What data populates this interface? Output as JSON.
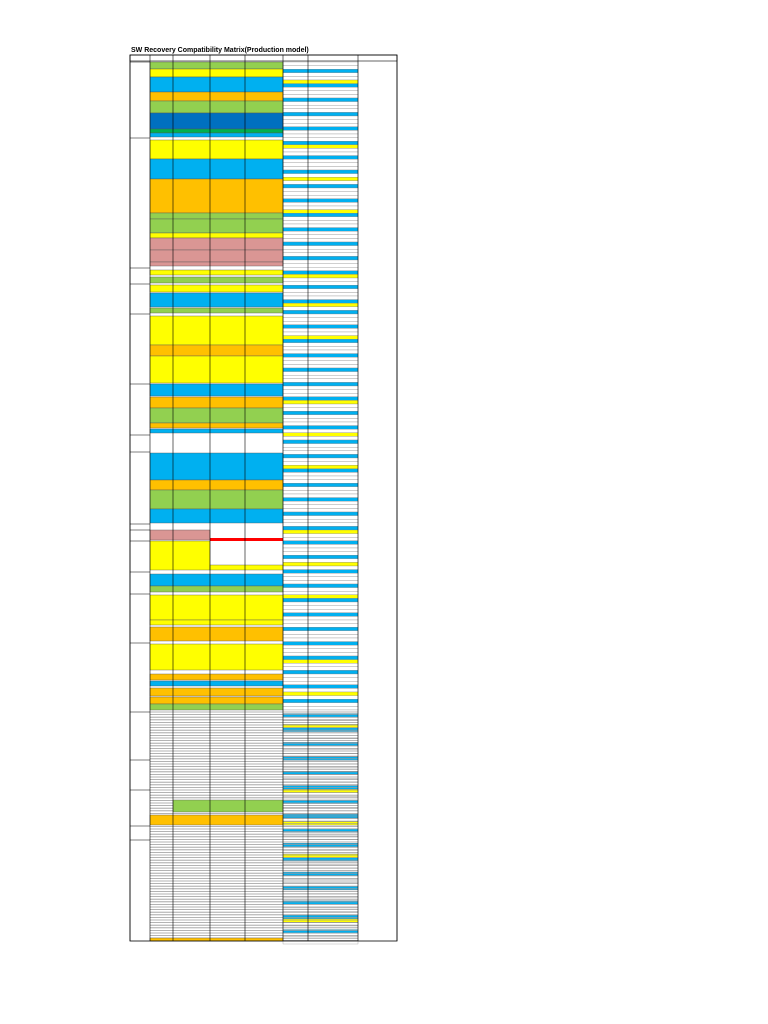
{
  "header": {
    "title": "SW Recovery Compatibility Matrix(Production model)"
  }
}
